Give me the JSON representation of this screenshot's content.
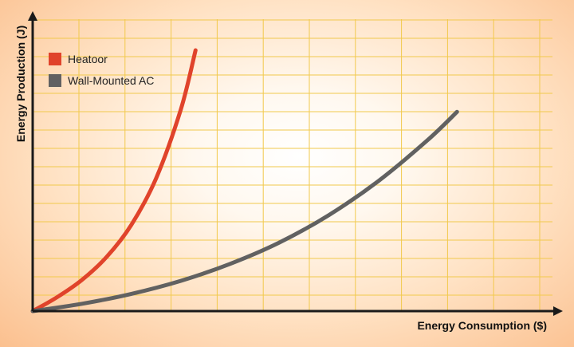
{
  "chart_data": {
    "type": "line",
    "title": "",
    "xlabel": "Energy Consumption ($)",
    "ylabel": "Energy Production (J)",
    "xlim": [
      0,
      100
    ],
    "ylim": [
      0,
      100
    ],
    "grid": true,
    "legend_position": "top-left",
    "series": [
      {
        "name": "Heatoor",
        "color": "#e0432b",
        "x": [
          0,
          5,
          10,
          15,
          20,
          25,
          30,
          33
        ],
        "y": [
          0,
          5.4,
          12.0,
          20.8,
          33.1,
          50.9,
          77.2,
          100
        ]
      },
      {
        "name": "Wall-Mounted AC",
        "color": "#616161",
        "x": [
          0,
          10,
          20,
          30,
          40,
          50,
          60,
          70,
          80,
          86
        ],
        "y": [
          0,
          2.8,
          6.6,
          11.6,
          18.1,
          26.3,
          36.8,
          49.8,
          65.5,
          76.4
        ]
      }
    ],
    "colors": {
      "grid": "#f2c94c",
      "axis": "#1a1a1a",
      "background_center": "#ffffff",
      "background_edge": "#fbc08f"
    }
  }
}
